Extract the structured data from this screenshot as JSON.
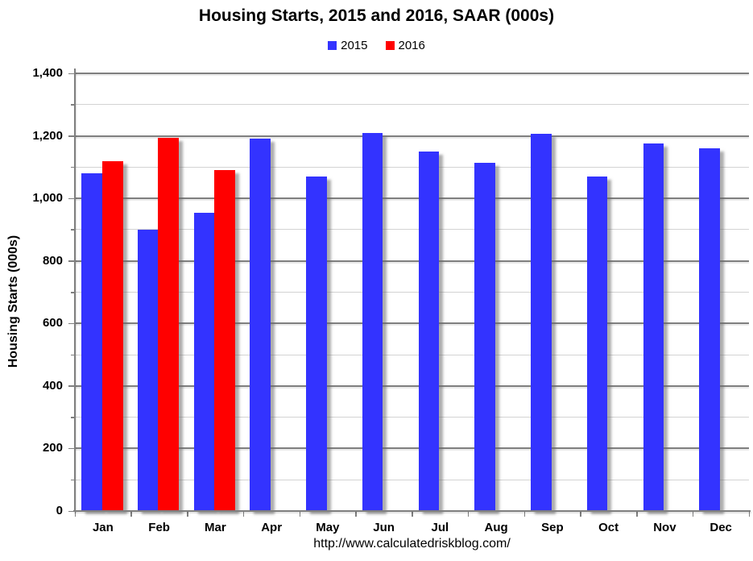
{
  "header": {
    "title": "Housing Starts,  2015 and 2016, SAAR (000s)"
  },
  "footer": {
    "source_url": "http://www.calculatedriskblog.com/"
  },
  "chart_data": {
    "type": "bar",
    "title": "Housing Starts,  2015 and 2016, SAAR (000s)",
    "categories": [
      "Jan",
      "Feb",
      "Mar",
      "Apr",
      "May",
      "Jun",
      "Jul",
      "Aug",
      "Sep",
      "Oct",
      "Nov",
      "Dec"
    ],
    "series": [
      {
        "name": "2015",
        "color": "#3333FF",
        "values": [
          1080,
          900,
          955,
          1190,
          1070,
          1210,
          1150,
          1115,
          1207,
          1070,
          1175,
          1160
        ]
      },
      {
        "name": "2016",
        "color": "#FF0000",
        "values": [
          1120,
          1195,
          1090,
          null,
          null,
          null,
          null,
          null,
          null,
          null,
          null,
          null
        ]
      }
    ],
    "xlabel": "",
    "ylabel": "Housing Starts (000s)",
    "ylim": [
      0,
      1400
    ],
    "ytick_interval": 200,
    "yminor_interval": 100,
    "ytick_labels": [
      "0",
      "200",
      "400",
      "600",
      "800",
      "1,000",
      "1,200",
      "1,400"
    ],
    "grid": true,
    "legend_position": "top-center",
    "colors": {
      "background": "#FFFFFF",
      "text": "#000000",
      "major_grid": "#7F7F7F",
      "minor_grid": "#D3D3D3",
      "axis": "#7F7F7F",
      "series_2015": "#3333FF",
      "series_2016": "#FF0000"
    }
  }
}
